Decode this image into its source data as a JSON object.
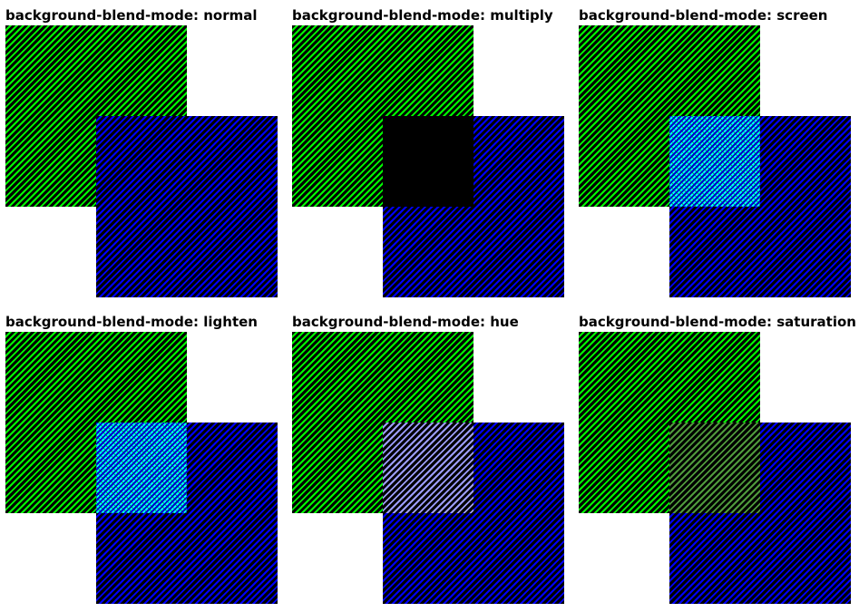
{
  "panels": [
    {
      "title": "background-blend-mode: normal",
      "mode": "normal"
    },
    {
      "title": "background-blend-mode: multiply",
      "mode": "multiply"
    },
    {
      "title": "background-blend-mode: screen",
      "mode": "screen"
    },
    {
      "title": "background-blend-mode: lighten",
      "mode": "lighten"
    },
    {
      "title": "background-blend-mode: hue",
      "mode": "hue"
    },
    {
      "title": "background-blend-mode: saturation",
      "mode": "saturation"
    }
  ],
  "colors": {
    "green": "#00ff00",
    "blue": "#0000ff",
    "stripe": "#000000",
    "multiply_overlap": "#000000",
    "screen_overlap": "#00ffff",
    "lighten_overlap": "#00ffff",
    "hue_overlap": "#9d9dff",
    "saturation_overlap": "#4f9a3c"
  }
}
